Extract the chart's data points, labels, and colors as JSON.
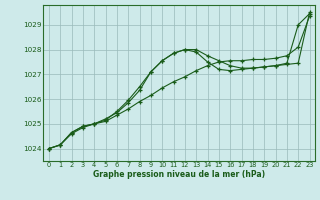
{
  "title": "Graphe pression niveau de la mer (hPa)",
  "bg_color": "#ceeaea",
  "grid_color": "#9ababa",
  "line_color": "#1a5c1a",
  "border_color": "#2a6c2a",
  "xlim": [
    -0.5,
    23.5
  ],
  "ylim": [
    1023.5,
    1029.8
  ],
  "yticks": [
    1024,
    1025,
    1026,
    1027,
    1028,
    1029
  ],
  "xticks": [
    0,
    1,
    2,
    3,
    4,
    5,
    6,
    7,
    8,
    9,
    10,
    11,
    12,
    13,
    14,
    15,
    16,
    17,
    18,
    19,
    20,
    21,
    22,
    23
  ],
  "line1_x": [
    0,
    1,
    2,
    3,
    4,
    5,
    6,
    7,
    8,
    9,
    10,
    11,
    12,
    13,
    14,
    15,
    16,
    17,
    18,
    19,
    20,
    21,
    22,
    23
  ],
  "line1_y": [
    1024.0,
    1024.15,
    1024.6,
    1024.85,
    1025.0,
    1025.1,
    1025.35,
    1025.6,
    1025.9,
    1026.15,
    1026.45,
    1026.7,
    1026.9,
    1027.15,
    1027.35,
    1027.5,
    1027.55,
    1027.55,
    1027.6,
    1027.6,
    1027.65,
    1027.75,
    1028.1,
    1029.35
  ],
  "line2_x": [
    0,
    1,
    2,
    3,
    4,
    5,
    6,
    7,
    8,
    9,
    10,
    11,
    12,
    13,
    14,
    15,
    16,
    17,
    18,
    19,
    20,
    21,
    22,
    23
  ],
  "line2_y": [
    1024.0,
    1024.15,
    1024.65,
    1024.9,
    1025.0,
    1025.2,
    1025.45,
    1025.85,
    1026.35,
    1027.1,
    1027.55,
    1027.85,
    1028.0,
    1028.0,
    1027.75,
    1027.55,
    1027.35,
    1027.25,
    1027.25,
    1027.3,
    1027.35,
    1027.45,
    1029.0,
    1029.45
  ],
  "line3_x": [
    0,
    1,
    2,
    3,
    4,
    5,
    6,
    7,
    8,
    9,
    10,
    11,
    12,
    13,
    14,
    15,
    16,
    17,
    18,
    19,
    20,
    21,
    22,
    23
  ],
  "line3_y": [
    1024.0,
    1024.15,
    1024.65,
    1024.9,
    1025.0,
    1025.15,
    1025.5,
    1025.95,
    1026.5,
    1027.1,
    1027.55,
    1027.85,
    1028.0,
    1027.9,
    1027.5,
    1027.2,
    1027.15,
    1027.2,
    1027.25,
    1027.3,
    1027.35,
    1027.4,
    1027.45,
    1029.5
  ]
}
